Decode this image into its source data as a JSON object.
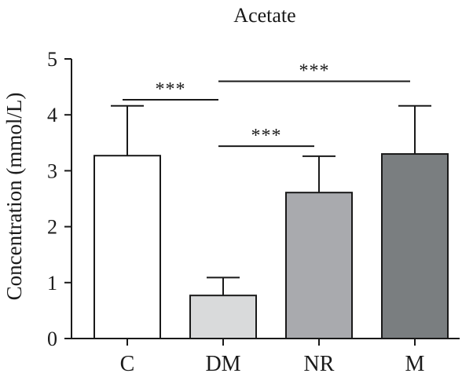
{
  "chart_data": {
    "type": "bar",
    "title": "Acetate",
    "ylabel": "Concentration (mmol/L)",
    "xlabel": "",
    "ylim": [
      0,
      5
    ],
    "yticks": [
      0,
      1,
      2,
      3,
      4,
      5
    ],
    "categories": [
      "C",
      "DM",
      "NR",
      "M"
    ],
    "values": [
      3.27,
      0.77,
      2.61,
      3.3
    ],
    "errors": [
      0.89,
      0.32,
      0.65,
      0.86
    ],
    "bar_colors": [
      "#ffffff",
      "#d9dadb",
      "#a9aaae",
      "#7a7e80"
    ],
    "grid": false,
    "significance": [
      {
        "from": "C",
        "to": "DM",
        "y": 4.27,
        "label": "***"
      },
      {
        "from": "DM",
        "to": "NR",
        "y": 3.44,
        "label": "***"
      },
      {
        "from": "DM",
        "to": "M",
        "y": 4.6,
        "label": "***"
      }
    ]
  }
}
